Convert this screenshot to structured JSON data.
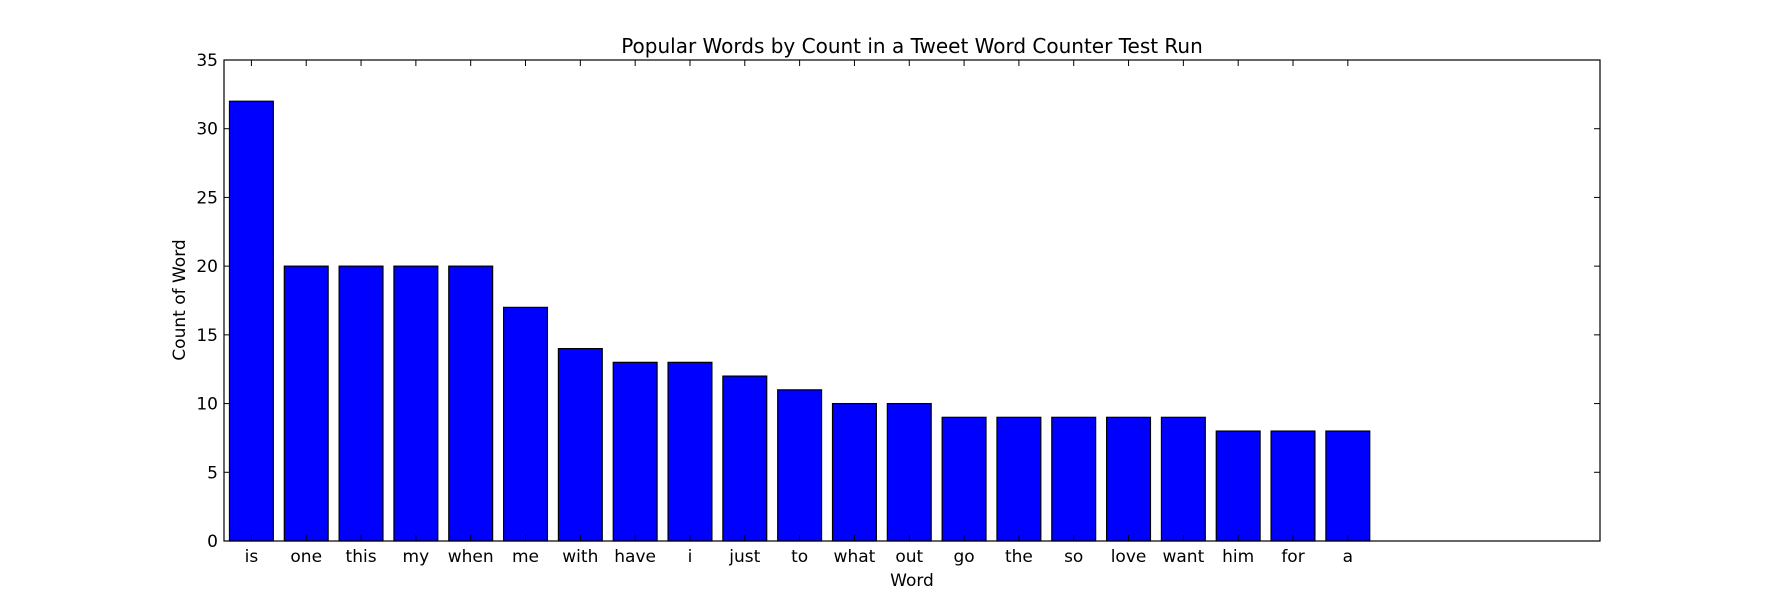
{
  "chart_data": {
    "type": "bar",
    "title": "Popular Words by Count in a Tweet Word Counter Test Run",
    "xlabel": "Word",
    "ylabel": "Count of Word",
    "categories": [
      "is",
      "one",
      "this",
      "my",
      "when",
      "me",
      "with",
      "have",
      "i",
      "just",
      "to",
      "what",
      "out",
      "go",
      "the",
      "so",
      "love",
      "want",
      "him",
      "for",
      "a"
    ],
    "values": [
      32,
      20,
      20,
      20,
      20,
      17,
      14,
      13,
      13,
      12,
      11,
      10,
      10,
      9,
      9,
      9,
      9,
      9,
      8,
      8,
      8
    ],
    "ylim": [
      0,
      35
    ],
    "yticks": [
      0,
      5,
      10,
      15,
      20,
      25,
      30,
      35
    ],
    "xlim": [
      -0.1,
      25
    ],
    "grid": false,
    "bar_color": "#0000ff",
    "edge_color": "#000000"
  }
}
